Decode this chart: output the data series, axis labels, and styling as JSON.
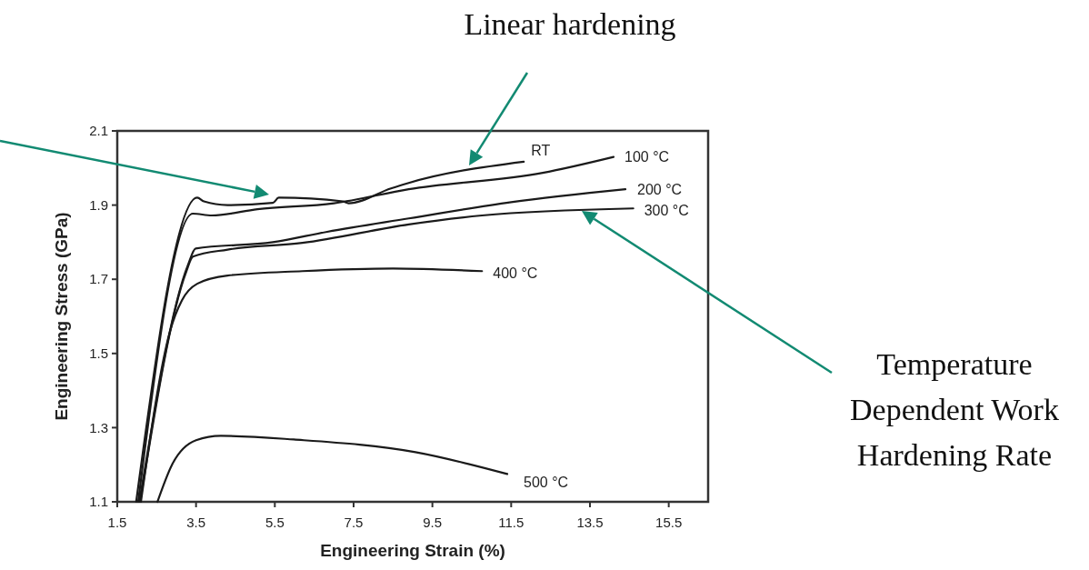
{
  "chart_data": {
    "type": "line",
    "xlabel": "Engineering Strain (%)",
    "ylabel": "Engineering Stress (GPa)",
    "xlim": [
      1.5,
      16.5
    ],
    "ylim": [
      1.1,
      2.1
    ],
    "xticks": [
      1.5,
      3.5,
      5.5,
      7.5,
      9.5,
      11.5,
      13.5,
      15.5
    ],
    "yticks": [
      1.1,
      1.3,
      1.5,
      1.7,
      1.9,
      2.1
    ],
    "grid": false,
    "marker": "none",
    "line_style": "solid",
    "series": [
      {
        "name": "RT",
        "color": "#1a1a1a",
        "x": [
          1.98,
          3.53,
          3.7,
          4.3,
          5.45,
          5.6,
          7.23,
          7.37,
          8.45,
          8.84,
          11.82
        ],
        "values": [
          1.1,
          1.92,
          1.91,
          1.9,
          1.906,
          1.92,
          1.91,
          1.905,
          1.945,
          1.958,
          2.017
        ]
      },
      {
        "name": "100 °C",
        "color": "#1a1a1a",
        "x": [
          2.03,
          3.42,
          3.9,
          5.06,
          7.0,
          8.9,
          12.3,
          14.1
        ],
        "values": [
          1.1,
          1.877,
          1.872,
          1.889,
          1.905,
          1.943,
          1.987,
          2.03
        ]
      },
      {
        "name": "200 °C",
        "color": "#1a1a1a",
        "x": [
          2.06,
          3.3,
          3.49,
          5.45,
          6.83,
          8.9,
          11.5,
          14.4
        ],
        "values": [
          1.1,
          1.74,
          1.783,
          1.8,
          1.828,
          1.864,
          1.908,
          1.943
        ]
      },
      {
        "name": "300 °C",
        "color": "#1a1a1a",
        "x": [
          2.08,
          3.25,
          3.42,
          4.3,
          6.2,
          8.9,
          10.76,
          14.6
        ],
        "values": [
          1.1,
          1.72,
          1.761,
          1.78,
          1.798,
          1.848,
          1.872,
          1.891
        ]
      },
      {
        "name": "400 °C",
        "color": "#1a1a1a",
        "x": [
          2.1,
          2.84,
          3.14,
          3.53,
          4.3,
          6.2,
          8.5,
          10.76
        ],
        "values": [
          1.1,
          1.56,
          1.643,
          1.688,
          1.71,
          1.722,
          1.729,
          1.722
        ]
      },
      {
        "name": "500 °C",
        "color": "#1a1a1a",
        "x": [
          2.52,
          2.89,
          3.5,
          4.13,
          5.98,
          9.07,
          11.4
        ],
        "values": [
          1.1,
          1.2,
          1.266,
          1.278,
          1.268,
          1.234,
          1.175
        ]
      }
    ],
    "annotations": [
      "Linear hardening",
      "Temperature Dependent Work Hardening Rate"
    ]
  }
}
